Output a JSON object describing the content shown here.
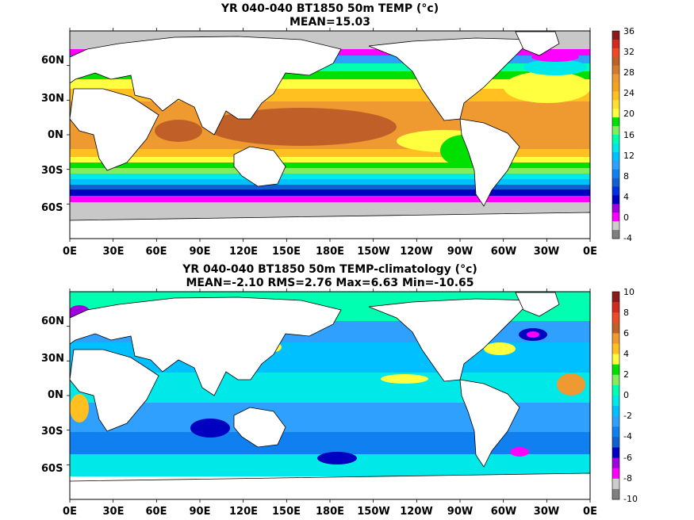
{
  "panels": [
    {
      "title_line1": "YR 040-040 BT1850 50m TEMP (°c)",
      "title_line2": "MEAN=15.03",
      "lat_labels": [
        "60N",
        "30N",
        "0N",
        "30S",
        "60S"
      ],
      "lon_labels": [
        "0E",
        "30E",
        "60E",
        "90E",
        "120E",
        "150E",
        "180E",
        "150W",
        "120W",
        "90W",
        "60W",
        "30W",
        "0E"
      ],
      "colorbar_labels": [
        "36",
        "32",
        "28",
        "24",
        "20",
        "16",
        "12",
        "8",
        "4",
        "0",
        "-4"
      ],
      "colorbar_colors": [
        "#8b1a1a",
        "#d12a1f",
        "#ee4a28",
        "#c06028",
        "#d27a30",
        "#ee9a30",
        "#f5a420",
        "#ffc020",
        "#ffe030",
        "#ffff40",
        "#00e000",
        "#80ee60",
        "#00ffb0",
        "#00e8e8",
        "#00c0ff",
        "#30a0ff",
        "#1080f0",
        "#1060d0",
        "#0030e0",
        "#0000c0",
        "#a000e0",
        "#ff00ff",
        "#cccccc",
        "#808080"
      ],
      "mean": 15.03
    },
    {
      "title_line1": "YR 040-040 BT1850 50m TEMP-climatology (°c)",
      "title_line2": "MEAN=-2.10   RMS=2.76   Max=6.63   Min=-10.65",
      "lat_labels": [
        "60N",
        "30N",
        "0N",
        "30S",
        "60S"
      ],
      "lon_labels": [
        "0E",
        "30E",
        "60E",
        "90E",
        "120E",
        "150E",
        "180E",
        "150W",
        "120W",
        "90W",
        "60W",
        "30W",
        "0E"
      ],
      "colorbar_labels": [
        "10",
        "8",
        "6",
        "4",
        "2",
        "0",
        "-2",
        "-4",
        "-6",
        "-8",
        "-10"
      ],
      "colorbar_colors": [
        "#8b1a1a",
        "#d12a1f",
        "#ee4a28",
        "#c06028",
        "#ee9a30",
        "#ffc020",
        "#ffff40",
        "#00e000",
        "#80ee60",
        "#00ffb0",
        "#00e8e8",
        "#00c0ff",
        "#30a0ff",
        "#1080f0",
        "#1060d0",
        "#0000c0",
        "#a000e0",
        "#ff00ff",
        "#cccccc",
        "#808080"
      ],
      "mean": -2.1,
      "rms": 2.76,
      "max": 6.63,
      "min": -10.65
    }
  ],
  "colors": {
    "land": "#ffffff",
    "ice": "#c8c8c8",
    "coast": "#000000"
  }
}
